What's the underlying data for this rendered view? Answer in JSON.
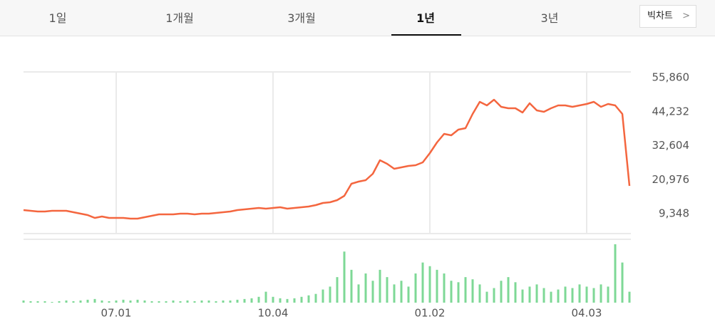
{
  "tabs": [
    "1일",
    "1개월",
    "3개월",
    "1년",
    "3년"
  ],
  "button": "빅차트",
  "chart_data": {
    "type": "line",
    "categories": [
      null,
      null,
      null,
      null,
      null,
      null,
      null,
      null,
      null,
      null,
      null,
      null,
      null,
      "07.01",
      null,
      null,
      null,
      null,
      null,
      null,
      null,
      null,
      null,
      null,
      null,
      null,
      null,
      null,
      null,
      null,
      null,
      null,
      null,
      null,
      null,
      "10.04",
      null,
      null,
      null,
      null,
      null,
      null,
      null,
      null,
      null,
      null,
      null,
      null,
      null,
      null,
      null,
      null,
      null,
      null,
      null,
      null,
      null,
      "01.02",
      null,
      null,
      null,
      null,
      null,
      null,
      null,
      null,
      null,
      null,
      null,
      null,
      null,
      null,
      null,
      null,
      null,
      null,
      null,
      null,
      null,
      "04.03",
      null,
      null,
      null,
      null,
      null,
      null
    ],
    "values": [
      10570,
      10330,
      10080,
      10080,
      10330,
      10330,
      10330,
      9840,
      9350,
      8870,
      7890,
      8380,
      7890,
      7890,
      7890,
      7650,
      7650,
      8130,
      8620,
      9110,
      9110,
      9110,
      9350,
      9350,
      9110,
      9350,
      9350,
      9600,
      9840,
      10080,
      10570,
      10810,
      11060,
      11300,
      11060,
      11300,
      11540,
      11060,
      11300,
      11540,
      11790,
      12270,
      13000,
      13250,
      13980,
      15440,
      19580,
      20310,
      20800,
      22990,
      27610,
      26400,
      24690,
      25180,
      25670,
      25910,
      26880,
      30050,
      33700,
      36620,
      36140,
      38090,
      38570,
      43440,
      47580,
      46360,
      48310,
      45880,
      45390,
      45390,
      43930,
      47090,
      44660,
      44170,
      45390,
      46360,
      46360,
      45880,
      46360,
      46850,
      47580,
      45880,
      46850,
      46360,
      43440,
      18850
    ],
    "color": "#f4663f",
    "ylim": [
      2530,
      57808
    ],
    "yticks": [
      {
        "value": 9348,
        "label": "9,348"
      },
      {
        "value": 20976,
        "label": "20,976"
      },
      {
        "value": 32604,
        "label": "32,604"
      },
      {
        "value": 44232,
        "label": "44,232"
      },
      {
        "value": 55860,
        "label": "55,860"
      }
    ],
    "volume": {
      "color": "#7ed896",
      "values": [
        3,
        2,
        2,
        2,
        1,
        2,
        3,
        2,
        3,
        4,
        5,
        3,
        2,
        3,
        4,
        3,
        4,
        3,
        2,
        2,
        2,
        3,
        2,
        3,
        2,
        3,
        3,
        2,
        3,
        3,
        4,
        5,
        6,
        8,
        15,
        8,
        6,
        5,
        6,
        8,
        10,
        12,
        18,
        22,
        35,
        70,
        45,
        25,
        40,
        30,
        45,
        35,
        25,
        30,
        22,
        40,
        55,
        50,
        45,
        40,
        30,
        28,
        35,
        32,
        25,
        15,
        20,
        30,
        35,
        28,
        18,
        22,
        25,
        20,
        15,
        18,
        22,
        20,
        25,
        22,
        20,
        25,
        22,
        80,
        55,
        15
      ]
    }
  }
}
